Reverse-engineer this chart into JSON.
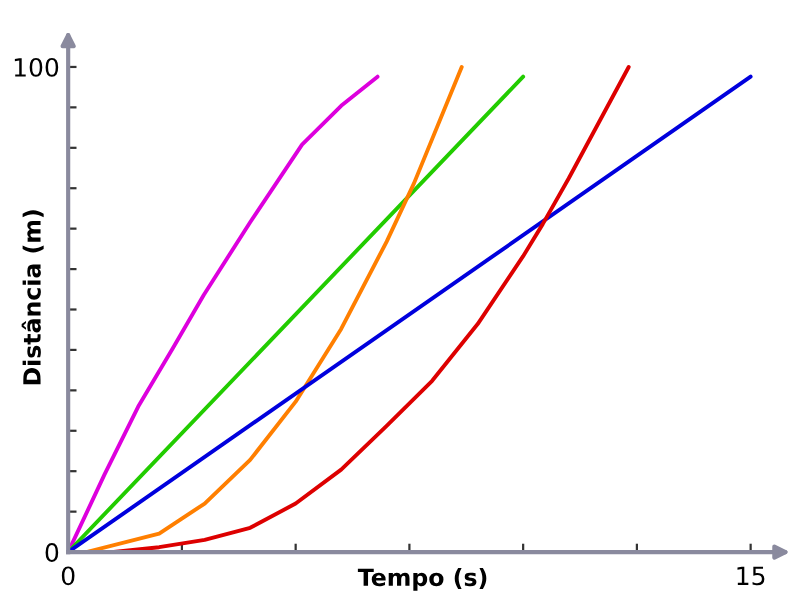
{
  "chart_data": {
    "type": "line",
    "xlabel": "Tempo (s)",
    "ylabel": "Distância (m)",
    "xlim": [
      0,
      15.6
    ],
    "ylim": [
      0,
      105
    ],
    "xticks": [
      0,
      {
        "value": 2.5,
        "label": null
      },
      {
        "value": 5,
        "label": null
      },
      {
        "value": 7.5,
        "label": null
      },
      {
        "value": 10,
        "label": null
      },
      {
        "value": 12.5,
        "label": null
      },
      15
    ],
    "yticks": [
      0,
      {
        "value": 8.33,
        "label": null
      },
      {
        "value": 16.67,
        "label": null
      },
      {
        "value": 25,
        "label": null
      },
      {
        "value": 33.33,
        "label": null
      },
      {
        "value": 41.67,
        "label": null
      },
      {
        "value": 50,
        "label": null
      },
      {
        "value": 58.33,
        "label": null
      },
      {
        "value": 66.67,
        "label": null
      },
      {
        "value": 75,
        "label": null
      },
      {
        "value": 83.33,
        "label": null
      },
      {
        "value": 91.67,
        "label": null
      },
      100
    ],
    "grid": false,
    "legend": false,
    "marker": "none",
    "line_style": "solid",
    "series": [
      {
        "color": "#dd00dd",
        "x": [
          0,
          0.8,
          1.54,
          2.3,
          2.98,
          4,
          5.14,
          6,
          6.8
        ],
        "values": [
          0,
          16,
          30,
          42,
          53,
          68,
          84,
          92,
          98
        ]
      },
      {
        "color": "#22cc00",
        "x": [
          0,
          10
        ],
        "values": [
          0,
          98
        ]
      },
      {
        "color": "#ff7f00",
        "x": [
          0,
          0.4,
          2,
          3,
          4,
          5,
          6,
          7,
          7.6,
          8.65
        ],
        "values": [
          0,
          0,
          3.8,
          10,
          19,
          31,
          46,
          64,
          76,
          100
        ]
      },
      {
        "color": "#0000dd",
        "x": [
          0,
          15
        ],
        "values": [
          0,
          98
        ]
      },
      {
        "color": "#dd0000",
        "x": [
          0,
          1,
          2,
          3,
          4,
          5,
          6,
          7,
          8,
          9,
          10,
          10.43,
          11,
          12.32
        ],
        "values": [
          0,
          0,
          1,
          2.5,
          5,
          10,
          17,
          26,
          35.3,
          47,
          61,
          67.6,
          77,
          100
        ]
      }
    ]
  }
}
